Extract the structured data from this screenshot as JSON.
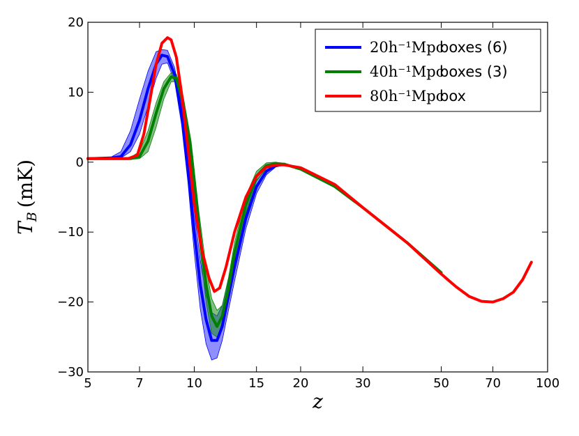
{
  "chart_data": {
    "type": "line",
    "xscale": "log",
    "xlim": [
      5,
      100
    ],
    "ylim": [
      -30,
      20
    ],
    "xlabel": "z",
    "ylabel": {
      "symbol": "T",
      "subscript": "B",
      "unit": "(mK)"
    },
    "xticks": [
      5,
      7,
      10,
      15,
      20,
      30,
      50,
      70,
      100
    ],
    "xtick_labels": [
      "5",
      "7",
      "10",
      "15",
      "20",
      "30",
      "50",
      "70",
      "100"
    ],
    "yticks": [
      -30,
      -20,
      -10,
      0,
      10,
      20
    ],
    "ytick_labels": [
      "−30",
      "−20",
      "−10",
      "0",
      "10",
      "20"
    ],
    "legend_position": "top-right",
    "series": [
      {
        "name": "20h⁻¹Mpc boxes (6)",
        "label_math": "20h⁻¹Mpc",
        "label_text": "boxes (6)",
        "color": "#0000ff",
        "band_color": "#3333ff",
        "x": [
          5,
          5.8,
          6.2,
          6.6,
          7,
          7.4,
          7.8,
          8.1,
          8.4,
          8.8,
          9.2,
          9.6,
          10,
          10.4,
          10.8,
          11.2,
          11.6,
          12,
          12.4,
          13,
          14,
          15,
          16,
          17,
          18
        ],
        "y": [
          0.5,
          0.6,
          0.8,
          2.5,
          6,
          10.5,
          14,
          15.3,
          15.1,
          12.5,
          7,
          -1,
          -10,
          -17.5,
          -22.5,
          -25.5,
          -25.5,
          -23.5,
          -20,
          -15,
          -8,
          -3.5,
          -1.3,
          -0.5,
          -0.3
        ],
        "lower": [
          0.4,
          0.5,
          0.6,
          1.5,
          4,
          8,
          12,
          14,
          14.2,
          11.5,
          5.5,
          -3,
          -13,
          -21,
          -26,
          -28.3,
          -28,
          -25.5,
          -22,
          -17,
          -9.5,
          -4.5,
          -1.8,
          -0.7,
          -0.4
        ],
        "upper": [
          0.6,
          0.7,
          1.5,
          4.5,
          9,
          13,
          15.8,
          16.1,
          16,
          13.5,
          8.5,
          1,
          -7,
          -14,
          -19,
          -21.5,
          -22,
          -20.5,
          -17.5,
          -13,
          -6.5,
          -2.6,
          -0.9,
          -0.3,
          -0.2
        ]
      },
      {
        "name": "40h⁻¹Mpc boxes (3)",
        "label_math": "40h⁻¹Mpc",
        "label_text": "boxes (3)",
        "color": "#008000",
        "band_color": "#1a8a1a",
        "x": [
          5,
          6,
          6.6,
          7,
          7.4,
          7.8,
          8.2,
          8.6,
          8.9,
          9.3,
          9.8,
          10.3,
          10.8,
          11.2,
          11.6,
          12,
          12.5,
          13,
          14,
          15,
          16,
          17,
          18,
          20,
          25,
          30,
          40,
          50
        ],
        "y": [
          0.5,
          0.5,
          0.5,
          0.8,
          3,
          7,
          10.5,
          12.2,
          12,
          8.5,
          1.5,
          -9,
          -17.5,
          -22,
          -23.5,
          -22,
          -18,
          -13,
          -6,
          -2,
          -0.5,
          -0.2,
          -0.3,
          -1,
          -3.5,
          -6.5,
          -11.5,
          -15.8
        ],
        "lower": [
          0.4,
          0.4,
          0.4,
          0.5,
          1.5,
          5,
          9,
          11.5,
          11.5,
          7.5,
          0,
          -11,
          -20,
          -24.5,
          -25,
          -23.5,
          -19.5,
          -14.5,
          -7.2,
          -2.7,
          -0.9,
          -0.4,
          -0.4,
          -1.1,
          -3.6,
          -6.6,
          -11.6,
          -15.9
        ],
        "upper": [
          0.6,
          0.6,
          0.7,
          1.5,
          4.5,
          8.5,
          11.5,
          12.8,
          12.6,
          9.5,
          3,
          -7,
          -15,
          -19.5,
          -21.2,
          -20.5,
          -16.5,
          -11.5,
          -4.8,
          -1.3,
          -0.1,
          0,
          -0.2,
          -0.9,
          -3.4,
          -6.4,
          -11.4,
          -15.7
        ]
      },
      {
        "name": "80h⁻¹Mpc box",
        "label_math": "80h⁻¹Mpc",
        "label_text": "box",
        "color": "#ff0000",
        "x": [
          5,
          6.5,
          6.9,
          7.2,
          7.5,
          7.8,
          8.1,
          8.4,
          8.6,
          8.9,
          9.2,
          9.6,
          10,
          10.5,
          11,
          11.4,
          11.8,
          12.3,
          13,
          14,
          15,
          16,
          17,
          18,
          20,
          25,
          30,
          40,
          50,
          55,
          60,
          65,
          70,
          75,
          80,
          85,
          90
        ],
        "y": [
          0.5,
          0.5,
          1,
          4,
          9,
          14,
          17,
          17.8,
          17.5,
          15,
          10,
          2,
          -6,
          -12.5,
          -16.5,
          -18.5,
          -18,
          -15,
          -10,
          -5,
          -2,
          -0.7,
          -0.4,
          -0.4,
          -0.8,
          -3.2,
          -6.5,
          -11.5,
          -16,
          -17.8,
          -19.2,
          -19.9,
          -20,
          -19.5,
          -18.6,
          -16.8,
          -14.3
        ]
      }
    ]
  }
}
